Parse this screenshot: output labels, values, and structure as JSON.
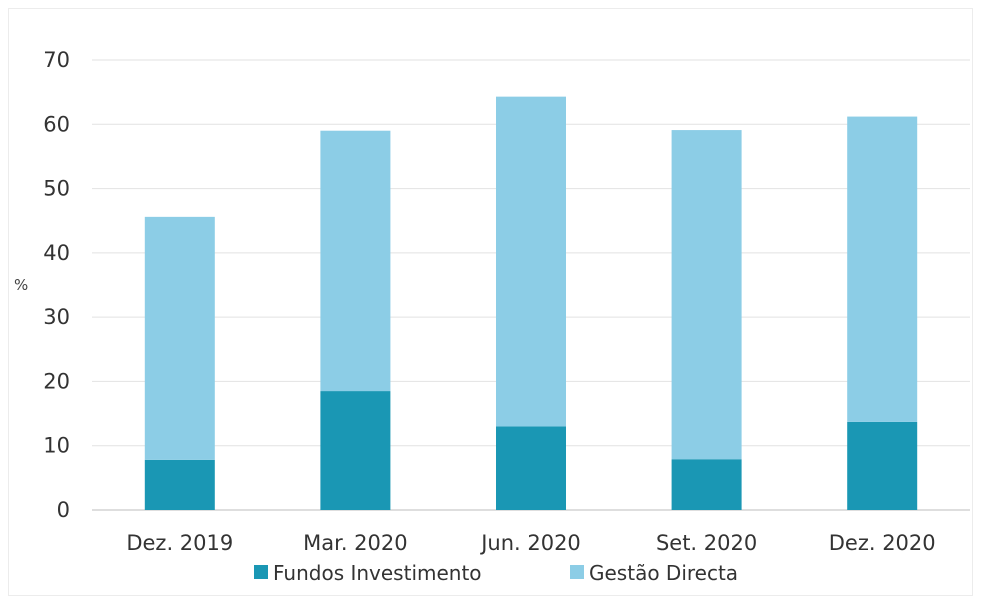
{
  "chart_data": {
    "type": "bar",
    "stacked": true,
    "title": "",
    "xlabel": "",
    "ylabel": "%",
    "ylim": [
      0,
      70
    ],
    "yticks": [
      0,
      10,
      20,
      30,
      40,
      50,
      60,
      70
    ],
    "grid": true,
    "legend": "bottom",
    "categories": [
      "Dez. 2019",
      "Mar. 2020",
      "Jun. 2020",
      "Set. 2020",
      "Dez. 2020"
    ],
    "series": [
      {
        "name": "Fundos Investimento",
        "color": "#1a97b4",
        "values": [
          7.8,
          18.5,
          13.0,
          7.9,
          13.7
        ]
      },
      {
        "name": "Gestão Directa",
        "color": "#8ccde6",
        "values": [
          37.8,
          40.5,
          51.3,
          51.2,
          47.5
        ]
      }
    ]
  }
}
